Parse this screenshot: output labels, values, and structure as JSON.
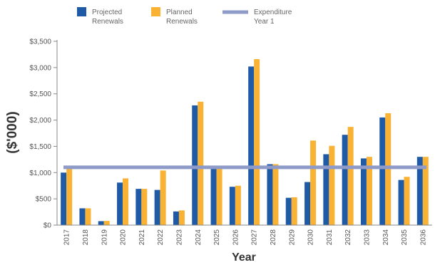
{
  "chart_data": {
    "type": "bar",
    "xlabel": "Year",
    "ylabel": "($'000)",
    "ylim": [
      0,
      3500
    ],
    "yticks": [
      0,
      500,
      1000,
      1500,
      2000,
      2500,
      3000,
      3500
    ],
    "ytick_labels": [
      "$0",
      "$500",
      "$1,000",
      "$1,500",
      "$2,000",
      "$2,500",
      "$3,000",
      "$3,500"
    ],
    "grid": false,
    "legend_position": "top",
    "categories": [
      "2017",
      "2018",
      "2019",
      "2020",
      "2021",
      "2022",
      "2023",
      "2024",
      "2025",
      "2026",
      "2027",
      "2028",
      "2029",
      "2030",
      "2031",
      "2032",
      "2033",
      "2034",
      "2035",
      "2036"
    ],
    "series": [
      {
        "name_lines": [
          "Projected",
          "Renewals"
        ],
        "color": "#1f5aa6",
        "values": [
          1000,
          320,
          75,
          810,
          690,
          670,
          260,
          2280,
          1080,
          730,
          3020,
          1160,
          520,
          820,
          1350,
          1720,
          1270,
          2050,
          860,
          1300
        ]
      },
      {
        "name_lines": [
          "Planned",
          "Renewals"
        ],
        "color": "#f9b234",
        "values": [
          1080,
          320,
          80,
          890,
          690,
          1040,
          280,
          2350,
          1100,
          750,
          3160,
          1160,
          530,
          1610,
          1510,
          1870,
          1300,
          2130,
          920,
          1300
        ]
      }
    ],
    "reference_line": {
      "name_lines": [
        "Expenditure",
        "Year 1"
      ],
      "color": "#8e9bc8",
      "value": 1100
    }
  }
}
